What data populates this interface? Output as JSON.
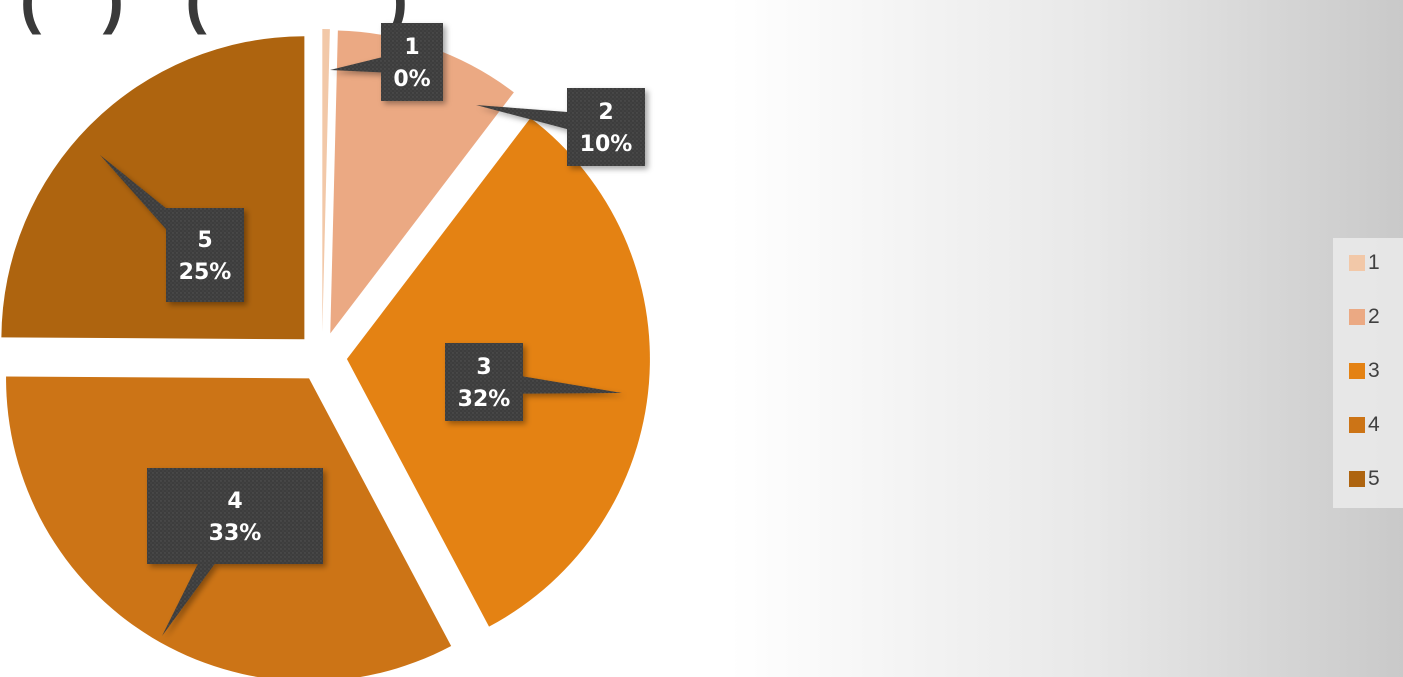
{
  "header": {
    "title_fragment": "(   )   (         )"
  },
  "chart_data": {
    "type": "pie",
    "categories": [
      "1",
      "2",
      "3",
      "4",
      "5"
    ],
    "values": [
      0,
      10,
      32,
      33,
      25
    ],
    "labels": [
      "1\n0%",
      "2\n10%",
      "3\n32%",
      "4\n33%",
      "5\n25%"
    ],
    "colors": [
      "#f2c8a8",
      "#eba983",
      "#e48213",
      "#cc7416",
      "#ae640f"
    ],
    "exploded": true,
    "legend": {
      "position": "right",
      "entries": [
        "1",
        "2",
        "3",
        "4",
        "5"
      ]
    },
    "callout_style": "dark-textured-box"
  }
}
